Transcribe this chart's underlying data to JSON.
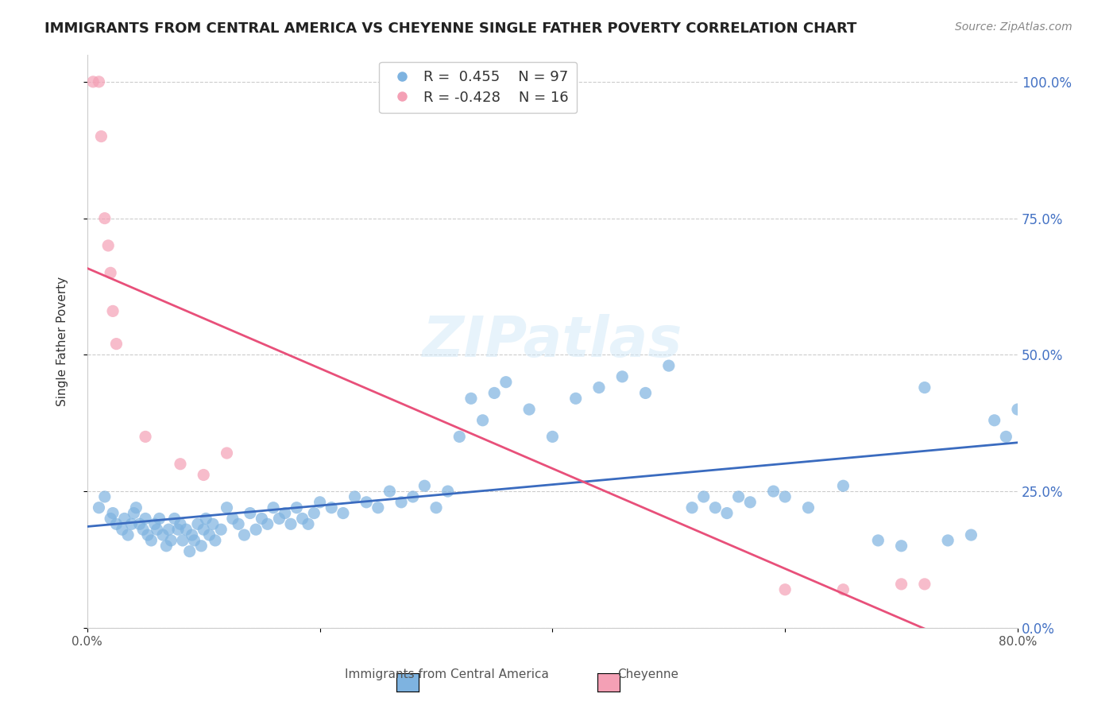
{
  "title": "IMMIGRANTS FROM CENTRAL AMERICA VS CHEYENNE SINGLE FATHER POVERTY CORRELATION CHART",
  "source": "Source: ZipAtlas.com",
  "xlabel_bottom": "",
  "ylabel_left": "Single Father Poverty",
  "ylabel_right_ticks": [
    0.0,
    0.25,
    0.5,
    0.75,
    1.0
  ],
  "ylabel_right_labels": [
    "0.0%",
    "25.0%",
    "50.0%",
    "75.0%",
    "100.0%"
  ],
  "xlabel_ticks": [
    0.0,
    0.2,
    0.4,
    0.6,
    0.8
  ],
  "xlabel_labels": [
    "0.0%",
    "",
    "",
    "",
    "80.0%"
  ],
  "xlim": [
    0.0,
    0.8
  ],
  "ylim": [
    0.0,
    1.05
  ],
  "legend_labels": [
    "Immigrants from Central America",
    "Cheyenne"
  ],
  "legend_r": [
    "R =  0.455",
    "R = -0.428"
  ],
  "legend_n": [
    "N = 97",
    "N = 16"
  ],
  "blue_color": "#7eb3e0",
  "pink_color": "#f4a0b5",
  "blue_line_color": "#3a6bbf",
  "pink_line_color": "#e8507a",
  "blue_r": 0.455,
  "blue_n": 97,
  "pink_r": -0.428,
  "pink_n": 16,
  "watermark": "ZIPatlas",
  "blue_scatter_x": [
    0.01,
    0.015,
    0.02,
    0.022,
    0.025,
    0.03,
    0.032,
    0.035,
    0.038,
    0.04,
    0.042,
    0.045,
    0.048,
    0.05,
    0.052,
    0.055,
    0.058,
    0.06,
    0.062,
    0.065,
    0.068,
    0.07,
    0.072,
    0.075,
    0.078,
    0.08,
    0.082,
    0.085,
    0.088,
    0.09,
    0.092,
    0.095,
    0.098,
    0.1,
    0.102,
    0.105,
    0.108,
    0.11,
    0.115,
    0.12,
    0.125,
    0.13,
    0.135,
    0.14,
    0.145,
    0.15,
    0.155,
    0.16,
    0.165,
    0.17,
    0.175,
    0.18,
    0.185,
    0.19,
    0.195,
    0.2,
    0.21,
    0.22,
    0.23,
    0.24,
    0.25,
    0.26,
    0.27,
    0.28,
    0.29,
    0.3,
    0.31,
    0.32,
    0.33,
    0.34,
    0.35,
    0.36,
    0.38,
    0.4,
    0.42,
    0.44,
    0.46,
    0.48,
    0.5,
    0.52,
    0.53,
    0.54,
    0.55,
    0.56,
    0.57,
    0.59,
    0.6,
    0.62,
    0.65,
    0.68,
    0.7,
    0.72,
    0.74,
    0.76,
    0.78,
    0.79,
    0.8
  ],
  "blue_scatter_y": [
    0.22,
    0.24,
    0.2,
    0.21,
    0.19,
    0.18,
    0.2,
    0.17,
    0.19,
    0.21,
    0.22,
    0.19,
    0.18,
    0.2,
    0.17,
    0.16,
    0.19,
    0.18,
    0.2,
    0.17,
    0.15,
    0.18,
    0.16,
    0.2,
    0.18,
    0.19,
    0.16,
    0.18,
    0.14,
    0.17,
    0.16,
    0.19,
    0.15,
    0.18,
    0.2,
    0.17,
    0.19,
    0.16,
    0.18,
    0.22,
    0.2,
    0.19,
    0.17,
    0.21,
    0.18,
    0.2,
    0.19,
    0.22,
    0.2,
    0.21,
    0.19,
    0.22,
    0.2,
    0.19,
    0.21,
    0.23,
    0.22,
    0.21,
    0.24,
    0.23,
    0.22,
    0.25,
    0.23,
    0.24,
    0.26,
    0.22,
    0.25,
    0.35,
    0.42,
    0.38,
    0.43,
    0.45,
    0.4,
    0.35,
    0.42,
    0.44,
    0.46,
    0.43,
    0.48,
    0.22,
    0.24,
    0.22,
    0.21,
    0.24,
    0.23,
    0.25,
    0.24,
    0.22,
    0.26,
    0.16,
    0.15,
    0.44,
    0.16,
    0.17,
    0.38,
    0.35,
    0.4
  ],
  "pink_scatter_x": [
    0.005,
    0.01,
    0.012,
    0.015,
    0.018,
    0.02,
    0.022,
    0.025,
    0.05,
    0.08,
    0.1,
    0.12,
    0.6,
    0.65,
    0.7,
    0.72
  ],
  "pink_scatter_y": [
    1.0,
    1.0,
    0.9,
    0.75,
    0.7,
    0.65,
    0.58,
    0.52,
    0.35,
    0.3,
    0.28,
    0.32,
    0.07,
    0.07,
    0.08,
    0.08
  ]
}
